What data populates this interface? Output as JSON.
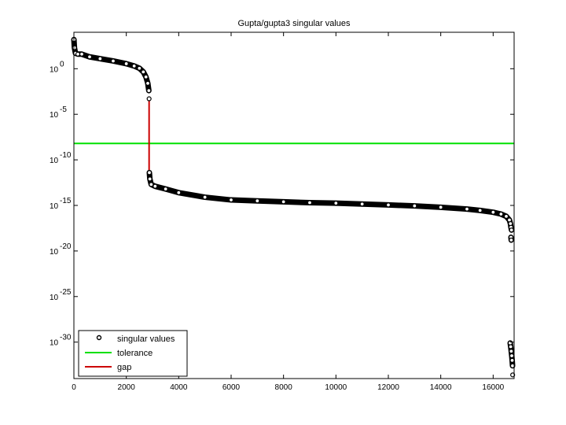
{
  "chart_data": {
    "type": "scatter",
    "title": "Gupta/gupta3 singular values",
    "xlabel": "",
    "ylabel": "",
    "xlim": [
      0,
      16800
    ],
    "ylim_log10": [
      -34,
      4
    ],
    "y_scale": "log",
    "grid": false,
    "legend_position": "bottom-left",
    "x_ticks": [
      0,
      2000,
      4000,
      6000,
      8000,
      10000,
      12000,
      14000,
      16000
    ],
    "x_tick_labels": [
      "0",
      "2000",
      "4000",
      "6000",
      "8000",
      "10000",
      "12000",
      "14000",
      "16000"
    ],
    "y_ticks_log10": [
      0,
      -5,
      -10,
      -15,
      -20,
      -25,
      -30
    ],
    "y_tick_labels": [
      {
        "base": "10",
        "exp": "0"
      },
      {
        "base": "10",
        "exp": "-5"
      },
      {
        "base": "10",
        "exp": "-10"
      },
      {
        "base": "10",
        "exp": "-15"
      },
      {
        "base": "10",
        "exp": "-20"
      },
      {
        "base": "10",
        "exp": "-25"
      },
      {
        "base": "10",
        "exp": "-30"
      }
    ],
    "series": [
      {
        "name": "singular values",
        "kind": "markers",
        "color": "#000000",
        "segments": [
          {
            "x": [
              1,
              20,
              60,
              150,
              300,
              600,
              1000,
              1500,
              2000,
              2300,
              2500,
              2650,
              2750,
              2820,
              2860
            ],
            "y_log10": [
              3.2,
              2.3,
              1.7,
              1.6,
              1.6,
              1.3,
              1.1,
              0.85,
              0.55,
              0.3,
              0.05,
              -0.35,
              -0.9,
              -1.6,
              -2.4
            ]
          },
          {
            "x": [
              2870
            ],
            "y_log10": [
              -3.3
            ]
          },
          {
            "x": [
              2880,
              2900,
              2950,
              3100,
              3500,
              4000,
              5000,
              6000,
              7000,
              8000,
              9000,
              10000,
              11000,
              12000,
              13000,
              14000,
              15000,
              15500,
              16000,
              16300,
              16500,
              16620,
              16660,
              16680,
              16700
            ],
            "y_log10": [
              -11.4,
              -12.1,
              -12.7,
              -12.9,
              -13.2,
              -13.6,
              -14.1,
              -14.4,
              -14.5,
              -14.6,
              -14.7,
              -14.75,
              -14.85,
              -14.95,
              -15.05,
              -15.2,
              -15.4,
              -15.55,
              -15.75,
              -15.95,
              -16.2,
              -16.6,
              -17.0,
              -17.4,
              -17.7
            ]
          },
          {
            "x": [
              16680,
              16690
            ],
            "y_log10": [
              -18.5,
              -18.8
            ]
          },
          {
            "x": [
              16650,
              16670,
              16690,
              16710,
              16725,
              16740
            ],
            "y_log10": [
              -30.1,
              -30.5,
              -31.0,
              -31.5,
              -32.0,
              -32.6
            ]
          },
          {
            "x": [
              16745
            ],
            "y_log10": [
              -33.6
            ]
          }
        ]
      },
      {
        "name": "tolerance",
        "kind": "hline",
        "color": "#00e000",
        "y_log10": -8.2
      },
      {
        "name": "gap",
        "kind": "vline",
        "color": "#cc0000",
        "x": 2870,
        "y_log10": [
          -3.3,
          -11.4
        ]
      }
    ]
  }
}
